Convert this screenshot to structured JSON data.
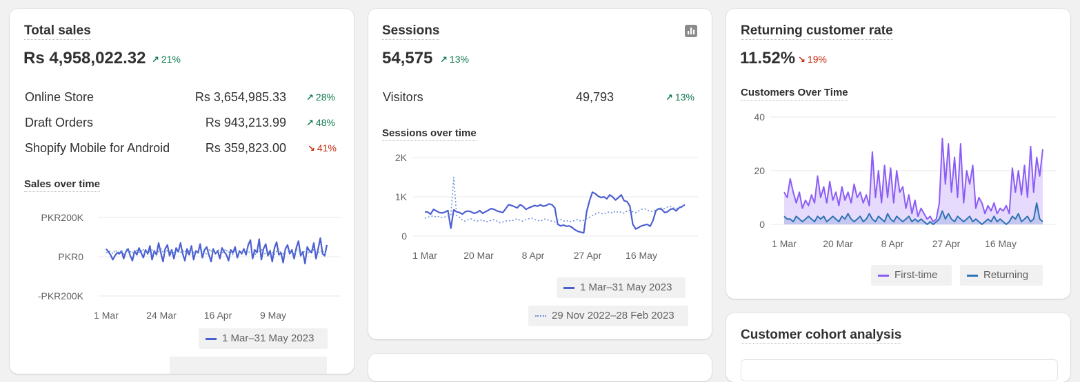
{
  "colors": {
    "primary_series": "#4b5fd0",
    "comparison_series": "#6b8fd6",
    "first_time": "#8b5cf6",
    "returning": "#2f72b5",
    "trend_up": "#0f7a4d",
    "trend_down": "#c5280c"
  },
  "total_sales": {
    "title": "Total sales",
    "value": "Rs 4,958,022.32",
    "trend": "21%",
    "trend_direction": "up",
    "channels": [
      {
        "label": "Online Store",
        "amount": "Rs 3,654,985.33",
        "trend": "28%",
        "direction": "up"
      },
      {
        "label": "Draft Orders",
        "amount": "Rs 943,213.99",
        "trend": "48%",
        "direction": "up"
      },
      {
        "label": "Shopify Mobile for Android",
        "amount": "Rs 359,823.00",
        "trend": "41%",
        "direction": "down"
      }
    ],
    "chart_title": "Sales over time",
    "legend": [
      "1 Mar–31 May 2023"
    ]
  },
  "sessions": {
    "title": "Sessions",
    "value": "54,575",
    "trend": "13%",
    "trend_direction": "up",
    "chart_icon": "bar-chart-icon",
    "visitors_label": "Visitors",
    "visitors_value": "49,793",
    "visitors_trend": "13%",
    "chart_title": "Sessions over time",
    "legend": [
      "1 Mar–31 May 2023",
      "29 Nov 2022–28 Feb 2023"
    ]
  },
  "returning_rate": {
    "title": "Returning customer rate",
    "value": "11.52%",
    "trend": "19%",
    "trend_direction": "down",
    "chart_title": "Customers Over Time",
    "legend": [
      "First-time",
      "Returning"
    ]
  },
  "cohort": {
    "title": "Customer cohort analysis"
  },
  "chart_data": [
    {
      "type": "line",
      "title": "Sales over time",
      "x_tick_labels": [
        "1 Mar",
        "24 Mar",
        "16 Apr",
        "9 May"
      ],
      "y_tick_labels": [
        "PKR200K",
        "PKR0",
        "-PKR200K"
      ],
      "ylim": [
        -200000,
        200000
      ],
      "series": [
        {
          "name": "1 Mar–31 May 2023",
          "style": "solid",
          "values": [
            40,
            25,
            10,
            -15,
            5,
            20,
            15,
            30,
            -10,
            25,
            40,
            5,
            -20,
            30,
            10,
            45,
            20,
            -5,
            35,
            15,
            55,
            -15,
            30,
            10,
            70,
            20,
            -25,
            40,
            60,
            5,
            35,
            -10,
            45,
            25,
            70,
            15,
            -20,
            40,
            10,
            55,
            -15,
            30,
            20,
            65,
            -5,
            35,
            50,
            10,
            -25,
            40,
            15,
            30,
            -10,
            45,
            25,
            10,
            -20,
            35,
            20,
            50,
            -5,
            30,
            15,
            40,
            10,
            60,
            85,
            -10,
            35,
            20,
            90,
            -15,
            40,
            65,
            5,
            30,
            -25,
            45,
            75,
            10,
            20,
            -30,
            40,
            60,
            15,
            35,
            -10,
            45,
            80,
            5,
            25,
            -35,
            50,
            30,
            20,
            70,
            -10,
            40,
            95,
            15,
            5,
            60
          ]
        },
        {
          "name": "29 Nov 2022–28 Feb 2023",
          "style": "dotted",
          "values": [
            20,
            30,
            25,
            15,
            35,
            20,
            30,
            25,
            10,
            40,
            20,
            30,
            15,
            35,
            25,
            20,
            40,
            15,
            30,
            25,
            35,
            20,
            10,
            30,
            40,
            15,
            25,
            35,
            20,
            30,
            10,
            40,
            25,
            20,
            35,
            15,
            30,
            40,
            20,
            25,
            15,
            35,
            30,
            20,
            10,
            40,
            25,
            30,
            20,
            35,
            15,
            25,
            40,
            20,
            30,
            10,
            35,
            25,
            20,
            15,
            30,
            40,
            25,
            20,
            35,
            10,
            30,
            25,
            40,
            15,
            20,
            35,
            30,
            10,
            25,
            40,
            20,
            15,
            30,
            35,
            25,
            20,
            10,
            40,
            30,
            15,
            25,
            35,
            20,
            30,
            40,
            10,
            25,
            20,
            35,
            15,
            30
          ]
        }
      ]
    },
    {
      "type": "line",
      "title": "Sessions over time",
      "x_tick_labels": [
        "1 Mar",
        "20 Mar",
        "8 Apr",
        "27 Apr",
        "16 May"
      ],
      "y_tick_labels": [
        "2K",
        "1K",
        "0"
      ],
      "ylim": [
        0,
        2000
      ],
      "series": [
        {
          "name": "1 Mar–31 May 2023",
          "style": "solid",
          "values": [
            620,
            610,
            560,
            680,
            640,
            600,
            590,
            610,
            650,
            200,
            670,
            620,
            600,
            560,
            620,
            640,
            620,
            580,
            600,
            650,
            580,
            620,
            660,
            700,
            680,
            640,
            620,
            600,
            700,
            800,
            780,
            750,
            720,
            800,
            760,
            680,
            720,
            750,
            780,
            760,
            800,
            760,
            780,
            820,
            800,
            720,
            300,
            260,
            280,
            250,
            260,
            220,
            160,
            120,
            100,
            80,
            620,
            900,
            1120,
            1080,
            1020,
            980,
            1000,
            950,
            1050,
            1000,
            920,
            980,
            1050,
            900,
            880,
            760,
            300,
            180,
            220,
            260,
            280,
            300,
            250,
            400,
            650,
            700,
            680,
            600,
            620,
            680,
            700,
            640,
            720,
            750,
            800
          ]
        },
        {
          "name": "29 Nov 2022–28 Feb 2023",
          "style": "dotted",
          "values": [
            450,
            480,
            500,
            520,
            480,
            500,
            470,
            490,
            510,
            530,
            1500,
            520,
            480,
            400,
            380,
            420,
            440,
            400,
            380,
            400,
            420,
            360,
            380,
            400,
            420,
            380,
            340,
            360,
            380,
            400,
            380,
            420,
            440,
            400,
            380,
            420,
            440,
            460,
            420,
            400,
            380,
            420,
            440,
            400,
            380,
            360,
            400,
            420,
            380,
            400,
            360,
            380,
            400,
            420,
            380,
            400,
            440,
            480,
            520,
            560,
            600,
            580,
            560,
            600,
            620,
            580,
            640,
            600,
            620,
            580,
            640,
            660,
            620,
            600,
            640,
            680,
            700,
            660,
            640,
            620,
            680,
            700,
            720,
            700,
            740,
            760,
            720,
            700,
            740,
            760,
            780
          ]
        }
      ]
    },
    {
      "type": "area",
      "title": "Customers Over Time",
      "x_tick_labels": [
        "1 Mar",
        "20 Mar",
        "8 Apr",
        "27 Apr",
        "16 May"
      ],
      "y_tick_labels": [
        "40",
        "20",
        "0"
      ],
      "ylim": [
        0,
        40
      ],
      "series": [
        {
          "name": "First-time",
          "values": [
            12,
            10,
            17,
            12,
            8,
            12,
            6,
            9,
            7,
            11,
            8,
            18,
            10,
            14,
            8,
            16,
            9,
            12,
            7,
            14,
            9,
            12,
            8,
            15,
            10,
            12,
            8,
            11,
            7,
            27,
            10,
            20,
            8,
            22,
            10,
            21,
            8,
            20,
            12,
            14,
            6,
            11,
            4,
            9,
            3,
            6,
            4,
            2,
            3,
            1,
            2,
            8,
            32,
            15,
            30,
            12,
            25,
            10,
            30,
            8,
            20,
            15,
            22,
            6,
            10,
            8,
            4,
            7,
            5,
            8,
            4,
            6,
            5,
            7,
            4,
            21,
            12,
            20,
            11,
            22,
            10,
            29,
            12,
            25,
            18,
            28
          ]
        },
        {
          "name": "Returning",
          "values": [
            3,
            2,
            2,
            1,
            3,
            2,
            1,
            2,
            3,
            2,
            1,
            3,
            2,
            3,
            1,
            2,
            3,
            2,
            1,
            3,
            2,
            4,
            2,
            1,
            2,
            3,
            1,
            2,
            4,
            2,
            1,
            3,
            2,
            1,
            4,
            2,
            1,
            3,
            2,
            1,
            2,
            3,
            1,
            2,
            1,
            2,
            1,
            0,
            1,
            0,
            1,
            2,
            5,
            2,
            4,
            2,
            1,
            3,
            2,
            1,
            2,
            3,
            1,
            2,
            1,
            0,
            1,
            2,
            1,
            3,
            1,
            2,
            1,
            0,
            1,
            3,
            2,
            4,
            1,
            2,
            3,
            1,
            2,
            8,
            2,
            1
          ]
        }
      ]
    }
  ]
}
